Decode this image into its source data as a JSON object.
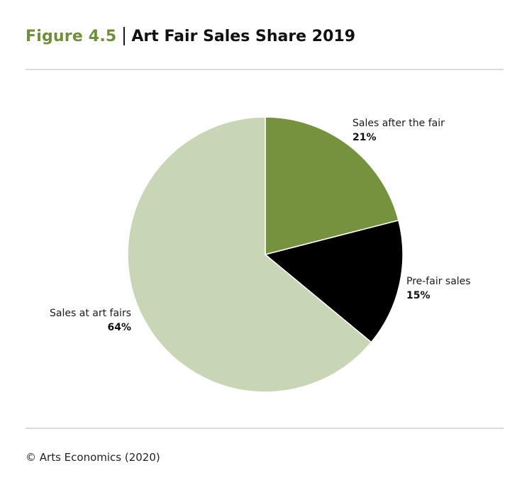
{
  "figure": {
    "number": "Figure 4.5",
    "title": "Art Fair Sales Share 2019",
    "source": "© Arts Economics (2020)"
  },
  "colors": {
    "figure_number": "#6f8f3a",
    "slice_after": "#76923f",
    "slice_pre": "#000000",
    "slice_at": "#c9d6b5"
  },
  "chart_data": {
    "type": "pie",
    "title": "Art Fair Sales Share 2019",
    "unit": "%",
    "slices": [
      {
        "label": "Sales after the fair",
        "value": 21,
        "display": "21%",
        "color": "#76923f"
      },
      {
        "label": "Pre-fair sales",
        "value": 15,
        "display": "15%",
        "color": "#000000"
      },
      {
        "label": "Sales at art fairs",
        "value": 64,
        "display": "64%",
        "color": "#c9d6b5"
      }
    ],
    "start": "12 o'clock",
    "direction": "clockwise"
  }
}
